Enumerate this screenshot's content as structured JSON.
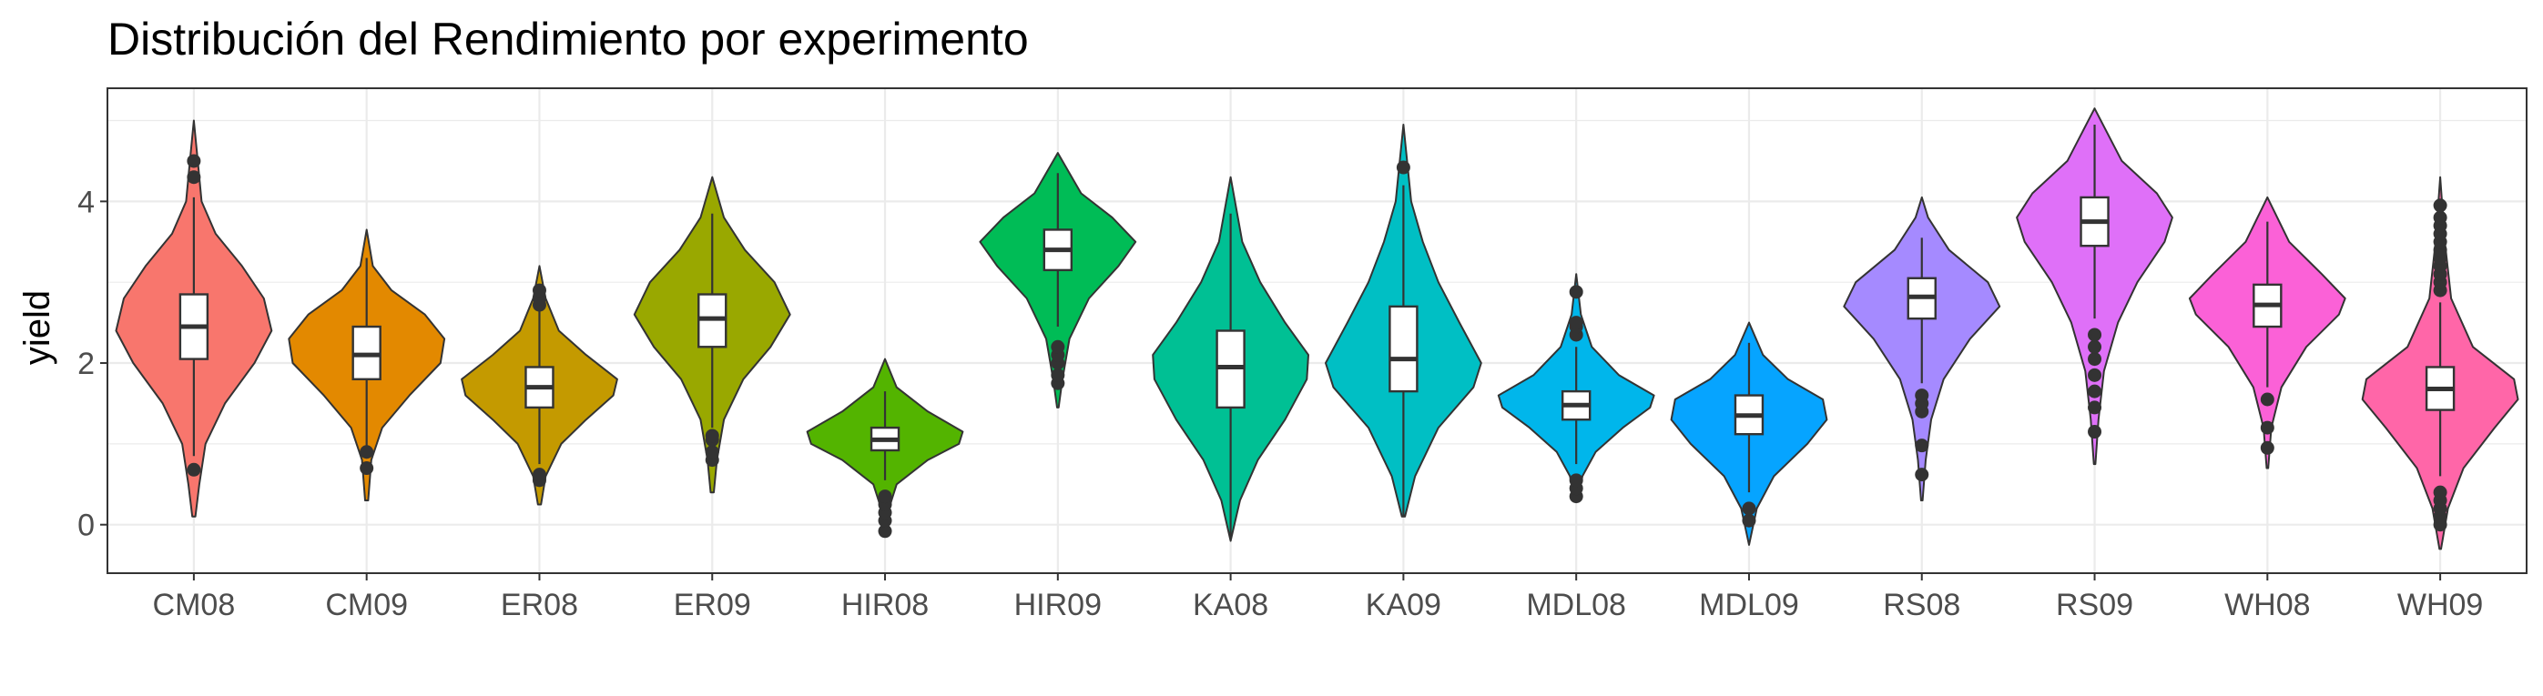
{
  "chart_data": {
    "type": "violin",
    "title": "Distribución del Rendimiento por experimento",
    "xlabel": "",
    "ylabel": "yield",
    "ylim": [
      -0.6,
      5.4
    ],
    "yticks": [
      0,
      2,
      4
    ],
    "grid": true,
    "legend": "none",
    "categories": [
      "CM08",
      "CM09",
      "ER08",
      "ER09",
      "HIR08",
      "HIR09",
      "KA08",
      "KA09",
      "MDL08",
      "MDL09",
      "RS08",
      "RS09",
      "WH08",
      "WH09"
    ],
    "colors": [
      "#F8766D",
      "#E38900",
      "#C49A00",
      "#99A800",
      "#53B400",
      "#00BC56",
      "#00C094",
      "#00BFC4",
      "#00B6EB",
      "#06A4FF",
      "#A58AFF",
      "#DF70F8",
      "#FB61D7",
      "#FF66A8"
    ],
    "series": [
      {
        "min": 0.1,
        "max": 5.0,
        "q1": 2.05,
        "median": 2.45,
        "q3": 2.85,
        "whisker_low": 0.85,
        "whisker_high": 4.05,
        "outliers": [
          0.68,
          4.3,
          4.5
        ],
        "density": [
          [
            0.1,
            0.02
          ],
          [
            0.5,
            0.07
          ],
          [
            1.0,
            0.15
          ],
          [
            1.5,
            0.4
          ],
          [
            2.0,
            0.78
          ],
          [
            2.4,
            1.0
          ],
          [
            2.8,
            0.9
          ],
          [
            3.2,
            0.62
          ],
          [
            3.6,
            0.28
          ],
          [
            4.0,
            0.1
          ],
          [
            4.5,
            0.05
          ],
          [
            5.0,
            0.0
          ]
        ]
      },
      {
        "min": 0.3,
        "max": 3.65,
        "q1": 1.8,
        "median": 2.1,
        "q3": 2.45,
        "whisker_low": 0.95,
        "whisker_high": 3.3,
        "outliers": [
          0.7,
          0.9
        ],
        "density": [
          [
            0.3,
            0.02
          ],
          [
            0.8,
            0.06
          ],
          [
            1.2,
            0.2
          ],
          [
            1.6,
            0.55
          ],
          [
            2.0,
            0.95
          ],
          [
            2.3,
            1.0
          ],
          [
            2.6,
            0.75
          ],
          [
            2.9,
            0.32
          ],
          [
            3.2,
            0.08
          ],
          [
            3.65,
            0.0
          ]
        ]
      },
      {
        "min": 0.25,
        "max": 3.2,
        "q1": 1.45,
        "median": 1.7,
        "q3": 1.95,
        "whisker_low": 0.75,
        "whisker_high": 2.65,
        "outliers": [
          0.55,
          0.62,
          2.72,
          2.8,
          2.9
        ],
        "density": [
          [
            0.25,
            0.02
          ],
          [
            0.6,
            0.08
          ],
          [
            1.0,
            0.28
          ],
          [
            1.3,
            0.6
          ],
          [
            1.6,
            0.95
          ],
          [
            1.8,
            1.0
          ],
          [
            2.1,
            0.6
          ],
          [
            2.4,
            0.25
          ],
          [
            2.8,
            0.08
          ],
          [
            3.2,
            0.0
          ]
        ]
      },
      {
        "min": 0.4,
        "max": 4.3,
        "q1": 2.2,
        "median": 2.55,
        "q3": 2.85,
        "whisker_low": 1.2,
        "whisker_high": 3.85,
        "outliers": [
          0.8,
          0.9,
          1.05,
          1.1
        ],
        "density": [
          [
            0.4,
            0.02
          ],
          [
            0.8,
            0.06
          ],
          [
            1.3,
            0.15
          ],
          [
            1.8,
            0.4
          ],
          [
            2.2,
            0.75
          ],
          [
            2.6,
            1.0
          ],
          [
            3.0,
            0.8
          ],
          [
            3.4,
            0.42
          ],
          [
            3.8,
            0.15
          ],
          [
            4.3,
            0.0
          ]
        ]
      },
      {
        "min": -0.15,
        "max": 2.05,
        "q1": 0.92,
        "median": 1.05,
        "q3": 1.2,
        "whisker_low": 0.55,
        "whisker_high": 1.65,
        "outliers": [
          -0.08,
          0.05,
          0.15,
          0.25,
          0.35
        ],
        "density": [
          [
            -0.15,
            0.01
          ],
          [
            0.2,
            0.05
          ],
          [
            0.5,
            0.15
          ],
          [
            0.8,
            0.55
          ],
          [
            1.0,
            0.95
          ],
          [
            1.15,
            1.0
          ],
          [
            1.4,
            0.55
          ],
          [
            1.7,
            0.15
          ],
          [
            2.05,
            0.0
          ]
        ]
      },
      {
        "min": 1.45,
        "max": 4.6,
        "q1": 3.15,
        "median": 3.4,
        "q3": 3.65,
        "whisker_low": 2.45,
        "whisker_high": 4.35,
        "outliers": [
          1.75,
          1.85,
          2.0,
          2.1,
          2.2
        ],
        "density": [
          [
            1.45,
            0.01
          ],
          [
            1.8,
            0.06
          ],
          [
            2.3,
            0.15
          ],
          [
            2.8,
            0.4
          ],
          [
            3.2,
            0.78
          ],
          [
            3.5,
            1.0
          ],
          [
            3.8,
            0.7
          ],
          [
            4.1,
            0.3
          ],
          [
            4.6,
            0.0
          ]
        ]
      },
      {
        "min": -0.2,
        "max": 4.3,
        "q1": 1.45,
        "median": 1.95,
        "q3": 2.4,
        "whisker_low": -0.15,
        "whisker_high": 3.85,
        "outliers": [],
        "density": [
          [
            -0.2,
            0.0
          ],
          [
            0.3,
            0.12
          ],
          [
            0.8,
            0.35
          ],
          [
            1.3,
            0.7
          ],
          [
            1.8,
            0.98
          ],
          [
            2.1,
            1.0
          ],
          [
            2.5,
            0.7
          ],
          [
            3.0,
            0.38
          ],
          [
            3.5,
            0.15
          ],
          [
            4.3,
            0.0
          ]
        ]
      },
      {
        "min": 0.1,
        "max": 4.95,
        "q1": 1.65,
        "median": 2.05,
        "q3": 2.7,
        "whisker_low": 0.1,
        "whisker_high": 4.2,
        "outliers": [
          4.42
        ],
        "density": [
          [
            0.1,
            0.02
          ],
          [
            0.6,
            0.15
          ],
          [
            1.2,
            0.45
          ],
          [
            1.7,
            0.9
          ],
          [
            2.0,
            1.0
          ],
          [
            2.5,
            0.72
          ],
          [
            3.0,
            0.45
          ],
          [
            3.5,
            0.25
          ],
          [
            4.0,
            0.1
          ],
          [
            4.95,
            0.0
          ]
        ]
      },
      {
        "min": 0.3,
        "max": 3.1,
        "q1": 1.3,
        "median": 1.48,
        "q3": 1.65,
        "whisker_low": 0.75,
        "whisker_high": 2.2,
        "outliers": [
          0.35,
          0.45,
          0.55,
          2.35,
          2.45,
          2.5,
          2.88
        ],
        "density": [
          [
            0.3,
            0.02
          ],
          [
            0.6,
            0.08
          ],
          [
            0.9,
            0.25
          ],
          [
            1.2,
            0.6
          ],
          [
            1.45,
            0.95
          ],
          [
            1.6,
            1.0
          ],
          [
            1.85,
            0.55
          ],
          [
            2.2,
            0.2
          ],
          [
            2.6,
            0.06
          ],
          [
            3.1,
            0.0
          ]
        ]
      },
      {
        "min": -0.25,
        "max": 2.5,
        "q1": 1.12,
        "median": 1.35,
        "q3": 1.6,
        "whisker_low": 0.4,
        "whisker_high": 2.25,
        "outliers": [
          0.05,
          0.2
        ],
        "density": [
          [
            -0.25,
            0.0
          ],
          [
            0.2,
            0.1
          ],
          [
            0.6,
            0.32
          ],
          [
            1.0,
            0.75
          ],
          [
            1.3,
            1.0
          ],
          [
            1.55,
            0.95
          ],
          [
            1.8,
            0.5
          ],
          [
            2.1,
            0.18
          ],
          [
            2.5,
            0.0
          ]
        ]
      },
      {
        "min": 0.3,
        "max": 4.05,
        "q1": 2.55,
        "median": 2.82,
        "q3": 3.05,
        "whisker_low": 1.75,
        "whisker_high": 3.55,
        "outliers": [
          0.62,
          0.98,
          1.4,
          1.5,
          1.6
        ],
        "density": [
          [
            0.3,
            0.01
          ],
          [
            0.8,
            0.05
          ],
          [
            1.3,
            0.12
          ],
          [
            1.8,
            0.28
          ],
          [
            2.3,
            0.62
          ],
          [
            2.7,
            1.0
          ],
          [
            3.0,
            0.85
          ],
          [
            3.4,
            0.35
          ],
          [
            3.8,
            0.08
          ],
          [
            4.05,
            0.0
          ]
        ]
      },
      {
        "min": 0.75,
        "max": 5.15,
        "q1": 3.45,
        "median": 3.75,
        "q3": 4.05,
        "whisker_low": 2.55,
        "whisker_high": 4.95,
        "outliers": [
          1.15,
          1.45,
          1.65,
          1.85,
          2.05,
          2.2,
          2.35
        ],
        "density": [
          [
            0.75,
            0.01
          ],
          [
            1.3,
            0.05
          ],
          [
            1.9,
            0.12
          ],
          [
            2.5,
            0.3
          ],
          [
            3.0,
            0.55
          ],
          [
            3.5,
            0.9
          ],
          [
            3.8,
            1.0
          ],
          [
            4.1,
            0.8
          ],
          [
            4.5,
            0.35
          ],
          [
            5.15,
            0.0
          ]
        ]
      },
      {
        "min": 0.7,
        "max": 4.05,
        "q1": 2.45,
        "median": 2.72,
        "q3": 2.97,
        "whisker_low": 1.7,
        "whisker_high": 3.75,
        "outliers": [
          0.95,
          1.2,
          1.55
        ],
        "density": [
          [
            0.7,
            0.01
          ],
          [
            1.2,
            0.05
          ],
          [
            1.7,
            0.18
          ],
          [
            2.2,
            0.5
          ],
          [
            2.6,
            0.92
          ],
          [
            2.8,
            1.0
          ],
          [
            3.1,
            0.7
          ],
          [
            3.5,
            0.28
          ],
          [
            4.05,
            0.0
          ]
        ]
      },
      {
        "min": -0.3,
        "max": 4.3,
        "q1": 1.42,
        "median": 1.68,
        "q3": 1.95,
        "whisker_low": 0.6,
        "whisker_high": 2.75,
        "outliers": [
          0.0,
          0.1,
          0.2,
          0.3,
          0.4,
          2.9,
          3.0,
          3.1,
          3.2,
          3.3,
          3.4,
          3.5,
          3.6,
          3.7,
          3.8,
          3.95
        ],
        "density": [
          [
            -0.3,
            0.01
          ],
          [
            0.2,
            0.1
          ],
          [
            0.7,
            0.3
          ],
          [
            1.2,
            0.7
          ],
          [
            1.55,
            1.0
          ],
          [
            1.8,
            0.95
          ],
          [
            2.2,
            0.42
          ],
          [
            2.8,
            0.14
          ],
          [
            3.5,
            0.06
          ],
          [
            4.3,
            0.0
          ]
        ]
      }
    ]
  }
}
